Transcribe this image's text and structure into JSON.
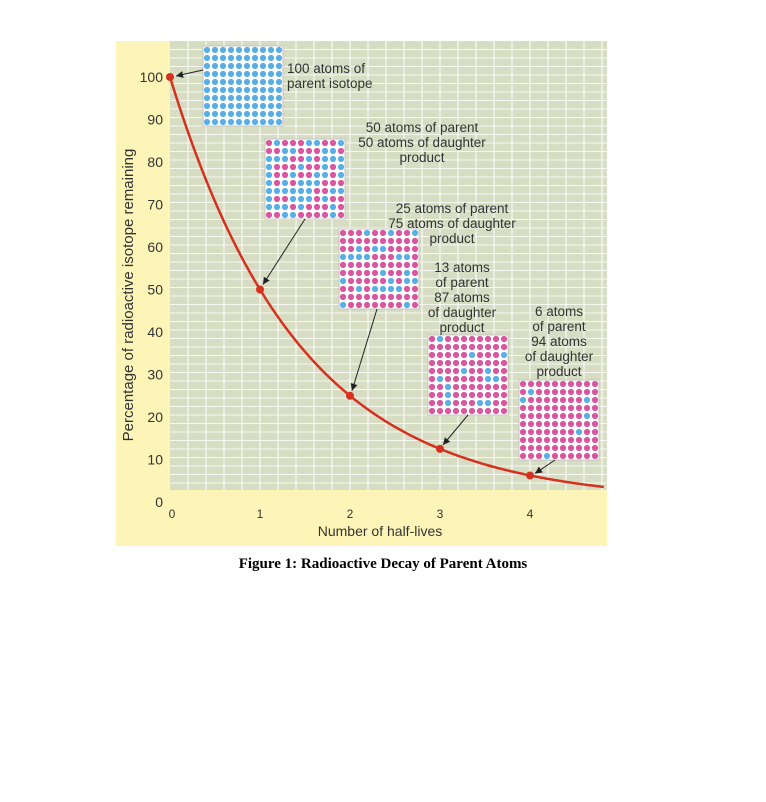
{
  "figure_caption": "Figure 1: Radioactive Decay of Parent Atoms",
  "chart_data": {
    "type": "line",
    "xlabel": "Number of half-lives",
    "ylabel": "Percentage of radioactive isotope remaining",
    "xlim": [
      0,
      4.8
    ],
    "ylim": [
      0,
      105
    ],
    "x_ticks": [
      "0",
      "1",
      "2",
      "3",
      "4"
    ],
    "y_ticks": [
      "0",
      "10",
      "20",
      "30",
      "40",
      "50",
      "60",
      "70",
      "80",
      "90",
      "100"
    ],
    "grid": true,
    "series": [
      {
        "values_x": [
          0,
          1,
          2,
          3,
          4
        ],
        "values_y": [
          100,
          50,
          25,
          12.5,
          6.25
        ]
      }
    ],
    "annotations": [
      {
        "lines": [
          "100 atoms of",
          "parent isotope"
        ],
        "parent": 100,
        "daughter": 0
      },
      {
        "lines": [
          "50 atoms of parent",
          "50 atoms of daughter",
          "product"
        ],
        "parent": 50,
        "daughter": 50
      },
      {
        "lines": [
          "25 atoms of parent",
          "75 atoms of daughter",
          "product"
        ],
        "parent": 25,
        "daughter": 75
      },
      {
        "lines": [
          "13 atoms",
          "of parent",
          "87 atoms",
          "of daughter",
          "product"
        ],
        "parent": 13,
        "daughter": 87
      },
      {
        "lines": [
          "6 atoms",
          "of parent",
          "94 atoms",
          "of daughter",
          "product"
        ],
        "parent": 6,
        "daughter": 94
      }
    ],
    "colors": {
      "background": "#fdf5b8",
      "plot_area": "#d6ddc3",
      "grid": "#ffffff",
      "curve": "#d6311f",
      "parent_atom": "#5aafe6",
      "daughter_atom": "#d9579e",
      "text": "#333333"
    }
  }
}
